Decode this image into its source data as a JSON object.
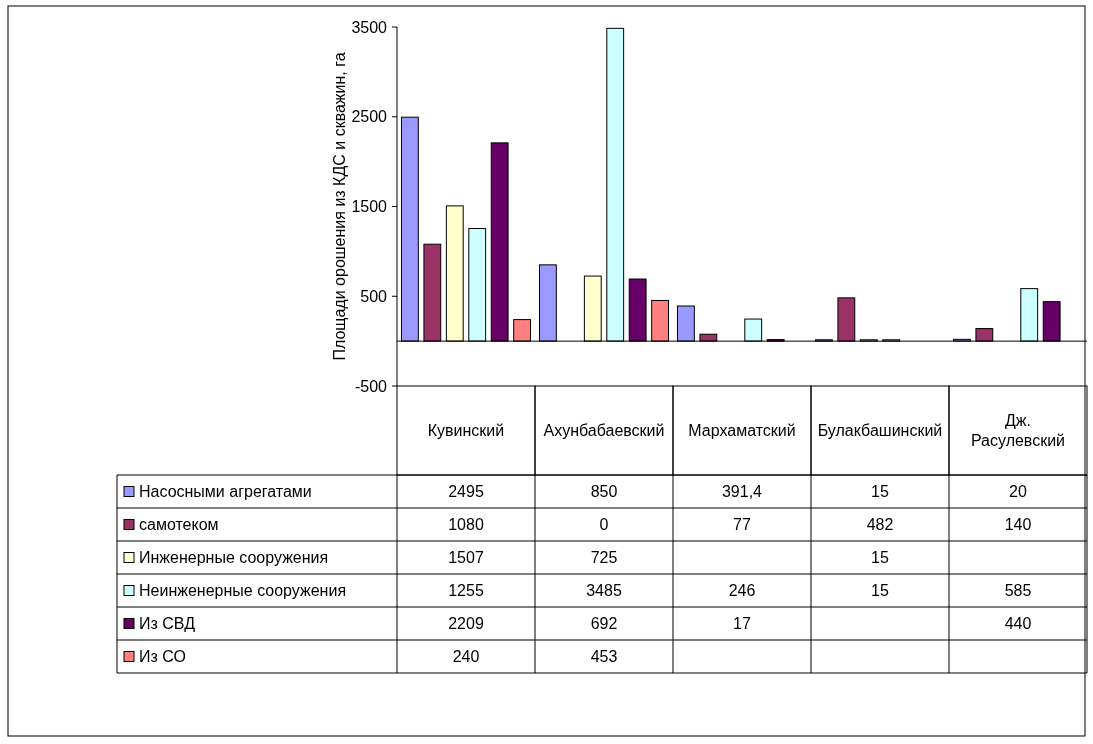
{
  "chart_data": {
    "type": "bar",
    "ylabel": "Площади орошения из КДС и скважин, га",
    "categories": [
      "Кувинский",
      "Ахунбабаевский",
      "Мархаматский",
      "Булакбашинский",
      "Дж. Расулевский"
    ],
    "series": [
      {
        "name": "Насосными агрегатами",
        "color": "#9999ff",
        "values": [
          2495,
          850,
          391.4,
          15,
          20
        ],
        "value_labels": [
          "2495",
          "850",
          "391,4",
          "15",
          "20"
        ]
      },
      {
        "name": "самотеком",
        "color": "#993366",
        "values": [
          1080,
          0,
          77,
          482,
          140
        ],
        "value_labels": [
          "1080",
          "0",
          "77",
          "482",
          "140"
        ]
      },
      {
        "name": "Инженерные сооружения",
        "color": "#ffffcc",
        "values": [
          1507,
          725,
          null,
          15,
          null
        ],
        "value_labels": [
          "1507",
          "725",
          null,
          "15",
          null
        ]
      },
      {
        "name": "Неинженерные сооружения",
        "color": "#ccffff",
        "values": [
          1255,
          3485,
          246,
          15,
          585
        ],
        "value_labels": [
          "1255",
          "3485",
          "246",
          "15",
          "585"
        ]
      },
      {
        "name": "Из СВД",
        "color": "#660066",
        "values": [
          2209,
          692,
          17,
          null,
          440
        ],
        "value_labels": [
          "2209",
          "692",
          "17",
          null,
          "440"
        ]
      },
      {
        "name": "Из СО",
        "color": "#ff8080",
        "values": [
          240,
          453,
          null,
          null,
          null
        ],
        "value_labels": [
          "240",
          "453",
          null,
          null,
          null
        ]
      }
    ],
    "ylim": [
      -500,
      3500
    ],
    "yticks": [
      -500,
      500,
      1500,
      2500,
      3500
    ],
    "grid": false,
    "legend": "bottom"
  }
}
